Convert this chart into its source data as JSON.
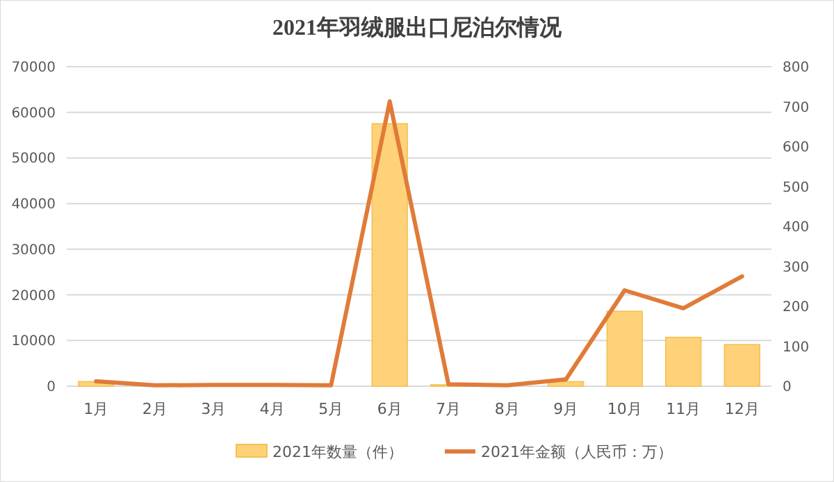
{
  "chart_data": {
    "type": "bar",
    "title": "2021年羽绒服出口尼泊尔情况",
    "categories": [
      "1月",
      "2月",
      "3月",
      "4月",
      "5月",
      "6月",
      "7月",
      "8月",
      "9月",
      "10月",
      "11月",
      "12月"
    ],
    "series": [
      {
        "name": "2021年数量（件）",
        "color": "#ffd27a",
        "values": [
          1000,
          null,
          200,
          200,
          null,
          57500,
          300,
          null,
          1000,
          16400,
          10700,
          9100
        ]
      },
      {
        "name": "2021年金额（人民币：万）",
        "type": "line",
        "axis": "y2",
        "color": "#e07b39",
        "values": [
          12,
          2,
          3,
          3,
          2,
          713,
          5,
          2,
          17,
          240,
          195,
          275
        ]
      }
    ],
    "ylim": [
      0,
      70000
    ],
    "yticks": [
      0,
      10000,
      20000,
      30000,
      40000,
      50000,
      60000,
      70000
    ],
    "y2lim": [
      0,
      800
    ],
    "y2ticks": [
      0,
      100,
      200,
      300,
      400,
      500,
      600,
      700,
      800
    ],
    "grid": "y",
    "legend": "bottom"
  }
}
